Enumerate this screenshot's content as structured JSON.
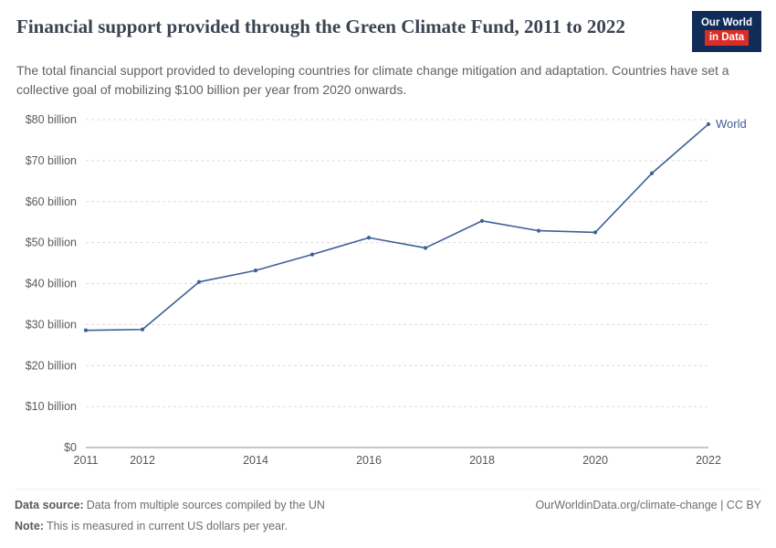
{
  "header": {
    "title": "Financial support provided through the Green Climate Fund, 2011 to 2022",
    "subtitle": "The total financial support provided to developing countries for climate change mitigation and adaptation. Countries have set a collective goal of mobilizing $100 billion per year from 2020 onwards.",
    "logo": {
      "line1": "Our World",
      "line2": "in Data"
    }
  },
  "chart_data": {
    "type": "line",
    "title": "Financial support provided through the Green Climate Fund, 2011 to 2022",
    "x": [
      2011,
      2012,
      2013,
      2014,
      2015,
      2016,
      2017,
      2018,
      2019,
      2020,
      2021,
      2022
    ],
    "series": [
      {
        "name": "World",
        "color": "#3d6096",
        "values": [
          28.6,
          28.8,
          40.4,
          43.2,
          47.1,
          51.2,
          48.7,
          55.3,
          52.9,
          52.5,
          66.9,
          78.9
        ]
      }
    ],
    "ylim": [
      0,
      80
    ],
    "yticks": [
      {
        "value": 0,
        "label": "$0"
      },
      {
        "value": 10,
        "label": "$10 billion"
      },
      {
        "value": 20,
        "label": "$20 billion"
      },
      {
        "value": 30,
        "label": "$30 billion"
      },
      {
        "value": 40,
        "label": "$40 billion"
      },
      {
        "value": 50,
        "label": "$50 billion"
      },
      {
        "value": 60,
        "label": "$60 billion"
      },
      {
        "value": 70,
        "label": "$70 billion"
      },
      {
        "value": 80,
        "label": "$80 billion"
      }
    ],
    "xticks": [
      2011,
      2012,
      2014,
      2016,
      2018,
      2020,
      2022
    ],
    "grid": "horizontal-dashed",
    "legend_position": "end-of-line"
  },
  "footer": {
    "source_label": "Data source:",
    "source_text": "Data from multiple sources compiled by the UN",
    "note_label": "Note:",
    "note_text": "This is measured in current US dollars per year.",
    "right_text": "OurWorldinData.org/climate-change | CC BY"
  }
}
